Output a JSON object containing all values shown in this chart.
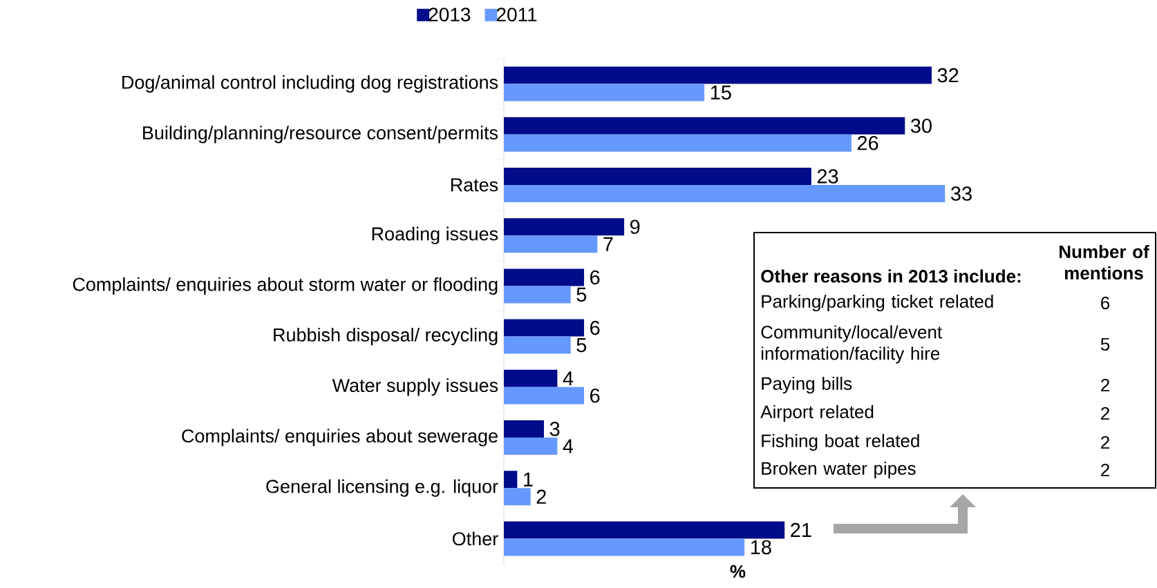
{
  "chart_data": {
    "type": "bar",
    "orientation": "horizontal",
    "categories": [
      "Dog/animal control including dog registrations",
      "Building/planning/resource consent/permits",
      "Rates",
      "Roading issues",
      "Complaints/ enquiries about storm water or flooding",
      "Rubbish disposal/ recycling",
      "Water supply issues",
      "Complaints/ enquiries about sewerage",
      "General licensing e.g. liquor",
      "Other"
    ],
    "series": [
      {
        "name": "2013",
        "color": "#000c8a",
        "values": [
          32,
          30,
          23,
          9,
          6,
          6,
          4,
          3,
          1,
          21
        ]
      },
      {
        "name": "2011",
        "color": "#6699ff",
        "values": [
          15,
          26,
          33,
          7,
          5,
          5,
          6,
          4,
          2,
          18
        ]
      }
    ],
    "xlabel": "%",
    "data_labels": true,
    "legend": "top",
    "annotations": [
      "Other reasons in 2013 include:",
      "Number of mentions",
      "Parking/parking ticket related",
      "6",
      "Community/local/event information/facility hire",
      "5",
      "Paying bills",
      "2",
      "Airport related",
      "2",
      "Fishing boat related",
      "2",
      "Broken water pipes",
      "2"
    ]
  }
}
